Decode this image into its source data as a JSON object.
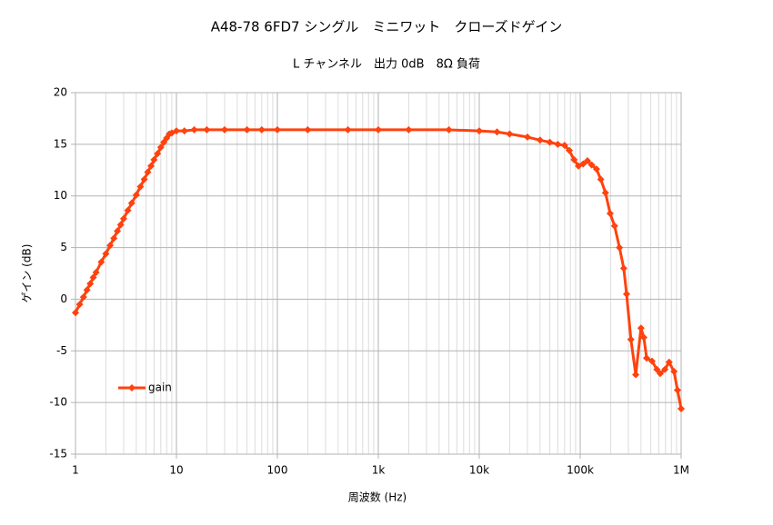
{
  "chart_data": {
    "type": "line",
    "title": "A48-78 6FD7 シングル　ミニワット　クローズドゲイン",
    "subtitle": "L チャンネル　出力 0dB　8Ω 負荷",
    "x_label": "周波数 (Hz)",
    "y_label": "ゲイン (dB)",
    "xscale": "log",
    "xlim": [
      1,
      1000000
    ],
    "xticks": [
      1,
      10,
      100,
      {
        "value": 1000,
        "label": "1k"
      },
      {
        "value": 10000,
        "label": "10k"
      },
      {
        "value": 100000,
        "label": "100k"
      },
      {
        "value": 1000000,
        "label": "1M"
      }
    ],
    "ylim": [
      -15,
      20
    ],
    "yticks": [
      -15,
      -10,
      -5,
      0,
      5,
      10,
      15,
      20
    ],
    "grid": true,
    "minor_grid": true,
    "legend": "lower-left",
    "series": [
      {
        "name": "gain",
        "color": "#ff420e",
        "x": [
          1,
          1.1,
          1.2,
          1.3,
          1.4,
          1.5,
          1.6,
          1.8,
          2,
          2.2,
          2.4,
          2.6,
          2.8,
          3,
          3.3,
          3.6,
          4,
          4.4,
          4.8,
          5.2,
          5.6,
          6,
          6.5,
          7,
          7.5,
          8,
          8.5,
          9,
          10,
          12,
          15,
          20,
          30,
          50,
          70,
          100,
          200,
          500,
          1000,
          2000,
          5000,
          10000,
          15000,
          20000,
          30000,
          40000,
          50000,
          60000,
          70000,
          78000,
          87000,
          96000,
          107000,
          118000,
          130000,
          145000,
          160000,
          178000,
          198000,
          219000,
          245000,
          270000,
          288000,
          318000,
          355000,
          400000,
          427000,
          455000,
          515000,
          575000,
          620000,
          690000,
          760000,
          850000,
          920000,
          1000000
        ],
        "values": [
          -1.3,
          -0.5,
          0.2,
          0.9,
          1.5,
          2.1,
          2.6,
          3.6,
          4.4,
          5.2,
          5.9,
          6.6,
          7.2,
          7.8,
          8.6,
          9.3,
          10.1,
          10.9,
          11.6,
          12.3,
          12.9,
          13.5,
          14.1,
          14.7,
          15.2,
          15.6,
          16.0,
          16.1,
          16.3,
          16.3,
          16.4,
          16.4,
          16.4,
          16.4,
          16.4,
          16.4,
          16.4,
          16.4,
          16.4,
          16.4,
          16.4,
          16.3,
          16.2,
          16.0,
          15.7,
          15.4,
          15.2,
          15.0,
          14.9,
          14.4,
          13.5,
          12.9,
          13.1,
          13.4,
          13.0,
          12.6,
          11.6,
          10.3,
          8.3,
          7.1,
          5.0,
          3.0,
          0.5,
          -3.9,
          -7.3,
          -2.8,
          -3.7,
          -5.7,
          -6.0,
          -6.8,
          -7.2,
          -6.8,
          -6.1,
          -7.0,
          -8.8,
          -10.6
        ]
      }
    ]
  }
}
